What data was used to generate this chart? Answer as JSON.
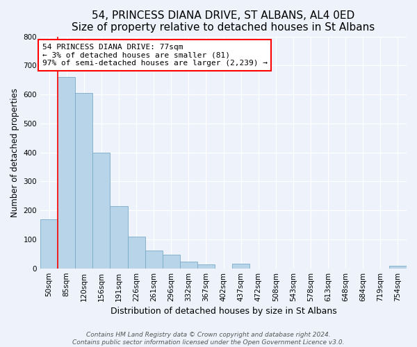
{
  "title": "54, PRINCESS DIANA DRIVE, ST ALBANS, AL4 0ED",
  "subtitle": "Size of property relative to detached houses in St Albans",
  "xlabel": "Distribution of detached houses by size in St Albans",
  "ylabel": "Number of detached properties",
  "bar_labels": [
    "50sqm",
    "85sqm",
    "120sqm",
    "156sqm",
    "191sqm",
    "226sqm",
    "261sqm",
    "296sqm",
    "332sqm",
    "367sqm",
    "402sqm",
    "437sqm",
    "472sqm",
    "508sqm",
    "543sqm",
    "578sqm",
    "613sqm",
    "648sqm",
    "684sqm",
    "719sqm",
    "754sqm"
  ],
  "bar_values": [
    170,
    660,
    605,
    400,
    215,
    110,
    62,
    46,
    22,
    14,
    0,
    16,
    0,
    0,
    0,
    0,
    0,
    0,
    0,
    0,
    8
  ],
  "bar_color": "#b8d4e8",
  "bar_edge_color": "#7aaac8",
  "annotation_box_text": "54 PRINCESS DIANA DRIVE: 77sqm\n← 3% of detached houses are smaller (81)\n97% of semi-detached houses are larger (2,239) →",
  "annotation_box_color": "white",
  "annotation_box_edge_color": "red",
  "vline_color": "red",
  "ylim": [
    0,
    800
  ],
  "yticks": [
    0,
    100,
    200,
    300,
    400,
    500,
    600,
    700,
    800
  ],
  "footer_line1": "Contains HM Land Registry data © Crown copyright and database right 2024.",
  "footer_line2": "Contains public sector information licensed under the Open Government Licence v3.0.",
  "bg_color": "#edf2fb",
  "title_fontsize": 11,
  "subtitle_fontsize": 9.5,
  "ylabel_fontsize": 8.5,
  "xlabel_fontsize": 9,
  "tick_fontsize": 7.5,
  "annotation_fontsize": 8,
  "footer_fontsize": 6.5
}
